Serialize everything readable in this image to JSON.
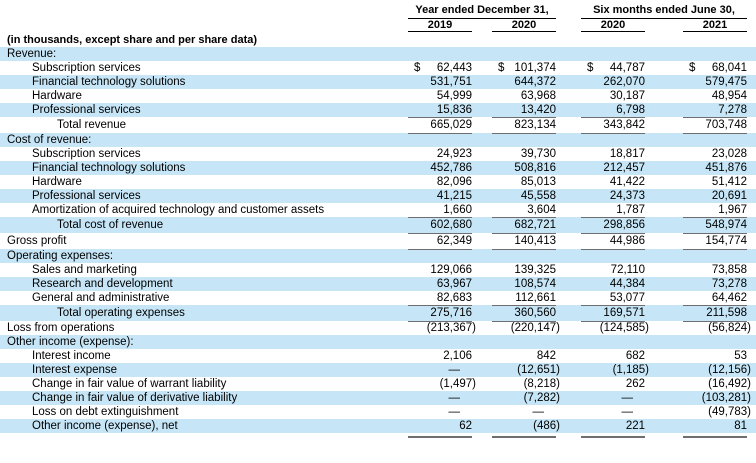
{
  "units_note": "(in thousands, except share and per share data)",
  "column_groups": [
    {
      "label": "Year ended December 31,",
      "columns": [
        "2019",
        "2020"
      ]
    },
    {
      "label": "Six months ended June 30,",
      "columns": [
        "2020",
        "2021"
      ]
    }
  ],
  "colors": {
    "row_shade": "#c6e6f7",
    "number_rule_gray": "#6e6e6e",
    "header_rule_black": "#000000"
  },
  "rows": [
    {
      "label": "Revenue:",
      "indent": 0,
      "values": null
    },
    {
      "label": "Subscription services",
      "indent": 1,
      "dollar": true,
      "values": [
        "62,443",
        "101,374",
        "44,787",
        "68,041"
      ]
    },
    {
      "label": "Financial technology solutions",
      "indent": 1,
      "values": [
        "531,751",
        "644,372",
        "262,070",
        "579,475"
      ]
    },
    {
      "label": "Hardware",
      "indent": 1,
      "values": [
        "54,999",
        "63,968",
        "30,187",
        "48,954"
      ]
    },
    {
      "label": "Professional services",
      "indent": 1,
      "rule_below": true,
      "values": [
        "15,836",
        "13,420",
        "6,798",
        "7,278"
      ]
    },
    {
      "label": "Total revenue",
      "indent": 2,
      "tall": true,
      "rule_below": true,
      "values": [
        "665,029",
        "823,134",
        "343,842",
        "703,748"
      ]
    },
    {
      "label": "Cost of revenue:",
      "indent": 0,
      "values": null
    },
    {
      "label": "Subscription services",
      "indent": 1,
      "values": [
        "24,923",
        "39,730",
        "18,817",
        "23,028"
      ]
    },
    {
      "label": "Financial technology solutions",
      "indent": 1,
      "values": [
        "452,786",
        "508,816",
        "212,457",
        "451,876"
      ]
    },
    {
      "label": "Hardware",
      "indent": 1,
      "values": [
        "82,096",
        "85,013",
        "41,422",
        "51,412"
      ]
    },
    {
      "label": "Professional services",
      "indent": 1,
      "values": [
        "41,215",
        "45,558",
        "24,373",
        "20,691"
      ]
    },
    {
      "label": "Amortization of acquired technology and customer assets",
      "indent": 1,
      "rule_below": true,
      "values": [
        "1,660",
        "3,604",
        "1,787",
        "1,967"
      ]
    },
    {
      "label": "Total cost of revenue",
      "indent": 2,
      "tall": true,
      "rule_below": true,
      "values": [
        "602,680",
        "682,721",
        "298,856",
        "548,974"
      ]
    },
    {
      "label": "Gross profit",
      "indent": 0,
      "tall": true,
      "rule_below": true,
      "values": [
        "62,349",
        "140,413",
        "44,986",
        "154,774"
      ]
    },
    {
      "label": "Operating expenses:",
      "indent": 0,
      "values": null
    },
    {
      "label": "Sales and marketing",
      "indent": 1,
      "values": [
        "129,066",
        "139,325",
        "72,110",
        "73,858"
      ]
    },
    {
      "label": "Research and development",
      "indent": 1,
      "values": [
        "63,967",
        "108,574",
        "44,384",
        "73,278"
      ]
    },
    {
      "label": "General and administrative",
      "indent": 1,
      "rule_below": true,
      "values": [
        "82,683",
        "112,661",
        "53,077",
        "64,462"
      ]
    },
    {
      "label": "Total operating expenses",
      "indent": 2,
      "tall": true,
      "rule_below": true,
      "values": [
        "275,716",
        "360,560",
        "169,571",
        "211,598"
      ]
    },
    {
      "label": "Loss from operations",
      "indent": 0,
      "values": [
        "(213,367)",
        "(220,147)",
        "(124,585)",
        "(56,824)"
      ]
    },
    {
      "label": "Other income (expense):",
      "indent": 0,
      "values": null
    },
    {
      "label": "Interest income",
      "indent": 1,
      "values": [
        "2,106",
        "842",
        "682",
        "53"
      ]
    },
    {
      "label": "Interest expense",
      "indent": 1,
      "values": [
        "—",
        "(12,651)",
        "(1,185)",
        "(12,156)"
      ]
    },
    {
      "label": "Change in fair value of warrant liability",
      "indent": 1,
      "values": [
        "(1,497)",
        "(8,218)",
        "262",
        "(16,492)"
      ]
    },
    {
      "label": "Change in fair value of derivative liability",
      "indent": 1,
      "values": [
        "—",
        "(7,282)",
        "—",
        "(103,281)"
      ]
    },
    {
      "label": "Loss on debt extinguishment",
      "indent": 1,
      "values": [
        "—",
        "—",
        "—",
        "(49,783)"
      ]
    },
    {
      "label": "Other income (expense), net",
      "indent": 1,
      "values": [
        "62",
        "(486)",
        "221",
        "81"
      ]
    }
  ]
}
